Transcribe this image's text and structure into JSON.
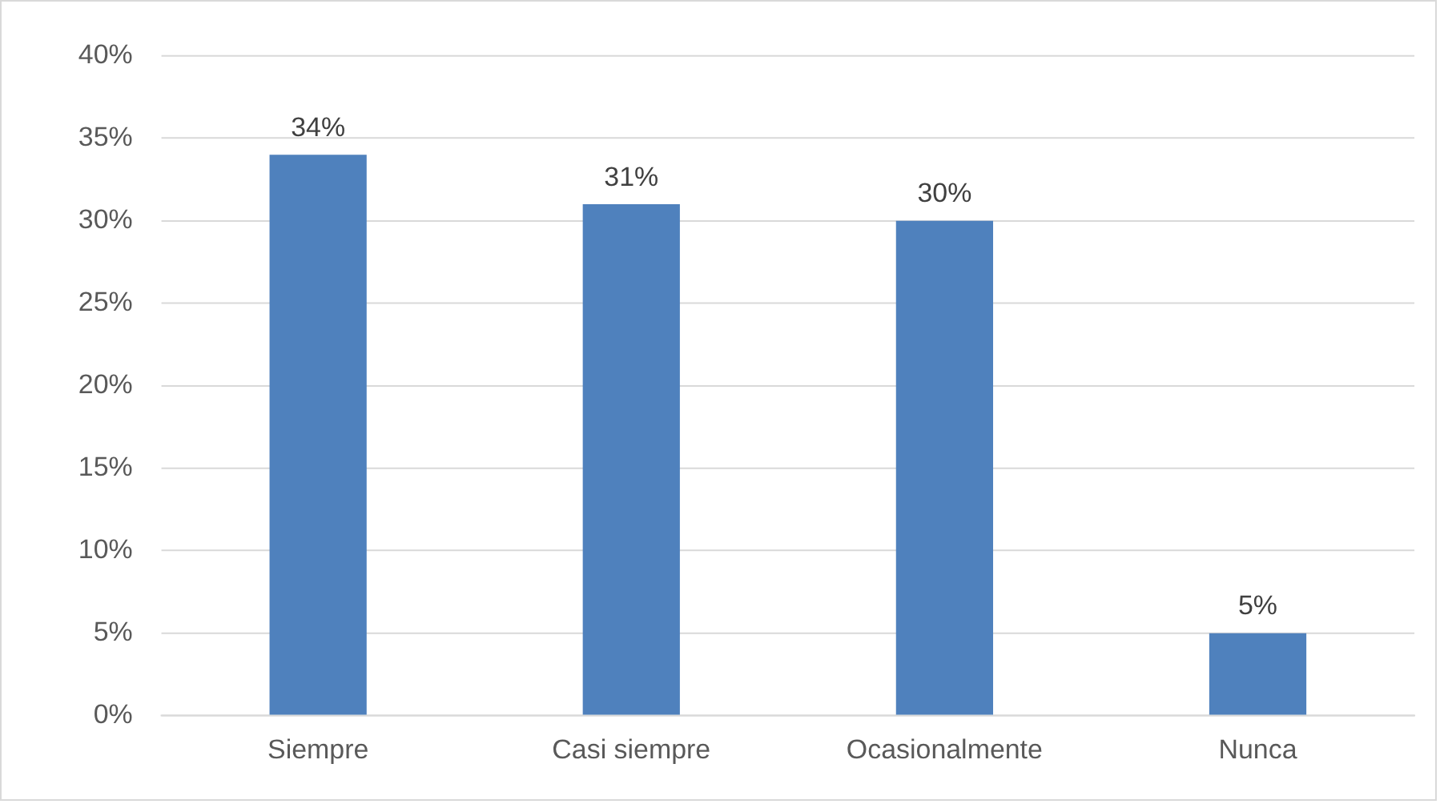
{
  "chart_data": {
    "type": "bar",
    "categories": [
      "Siempre",
      "Casi siempre",
      "Ocasionalmente",
      "Nunca"
    ],
    "values": [
      34,
      31,
      30,
      5
    ],
    "color": "#4f81bd",
    "value_labels": [
      "34%",
      "31%",
      "30%",
      "5%"
    ],
    "ylim": [
      0,
      40
    ],
    "yticks": [
      {
        "value": 0,
        "label": "0%"
      },
      {
        "value": 5,
        "label": "5%"
      },
      {
        "value": 10,
        "label": "10%"
      },
      {
        "value": 15,
        "label": "15%"
      },
      {
        "value": 20,
        "label": "20%"
      },
      {
        "value": 25,
        "label": "25%"
      },
      {
        "value": 30,
        "label": "30%"
      },
      {
        "value": 35,
        "label": "35%"
      },
      {
        "value": 40,
        "label": "40%"
      }
    ],
    "grid": "y"
  }
}
